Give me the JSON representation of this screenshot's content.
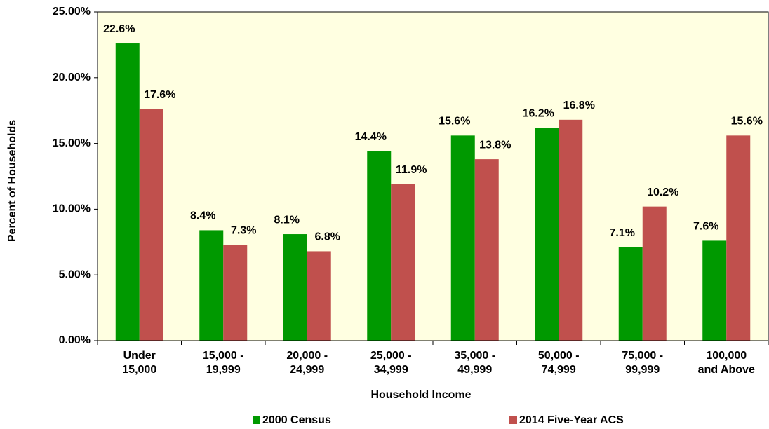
{
  "chart_data": {
    "type": "bar",
    "x_label": "Household Income",
    "y_label": "Percent of Households",
    "categories": [
      "Under\n15,000",
      "15,000 -\n19,999",
      "20,000 -\n24,999",
      "25,000 -\n34,999",
      "35,000 -\n49,999",
      "50,000 -\n74,999",
      "75,000 -\n99,999",
      "100,000\nand Above"
    ],
    "series": [
      {
        "name": "2000 Census",
        "color": "#009900",
        "values": [
          22.6,
          8.4,
          8.1,
          14.4,
          15.6,
          16.2,
          7.1,
          7.6
        ],
        "value_labels": [
          "22.6%",
          "8.4%",
          "8.1%",
          "14.4%",
          "15.6%",
          "16.2%",
          "7.1%",
          "7.6%"
        ]
      },
      {
        "name": "2014 Five-Year ACS",
        "color": "#c0504d",
        "values": [
          17.6,
          7.3,
          6.8,
          11.9,
          13.8,
          16.8,
          10.2,
          15.6
        ],
        "value_labels": [
          "17.6%",
          "7.3%",
          "6.8%",
          "11.9%",
          "13.8%",
          "16.8%",
          "10.2%",
          "15.6%"
        ]
      }
    ],
    "ylim": [
      0,
      25
    ],
    "yticks": [
      {
        "value": 0,
        "label": "0.00%"
      },
      {
        "value": 5,
        "label": "5.00%"
      },
      {
        "value": 10,
        "label": "10.00%"
      },
      {
        "value": 15,
        "label": "15.00%"
      },
      {
        "value": 20,
        "label": "20.00%"
      },
      {
        "value": 25,
        "label": "25.00%"
      }
    ],
    "legend": "bottom"
  }
}
